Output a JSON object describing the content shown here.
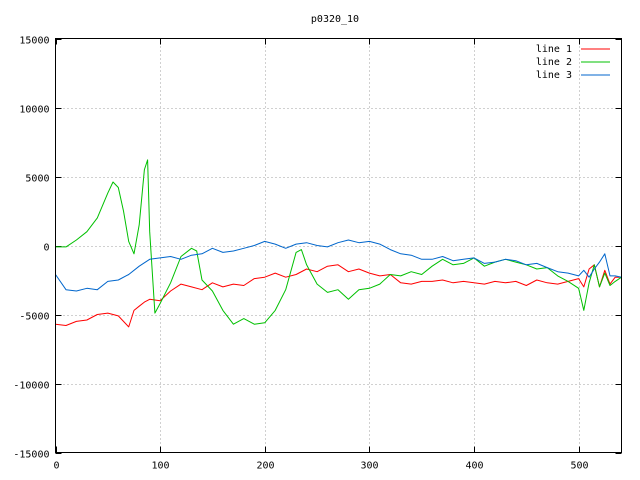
{
  "chart_data": {
    "type": "line",
    "title": "p0320_10",
    "xlabel": "",
    "ylabel": "",
    "xlim": [
      0,
      541
    ],
    "ylim": [
      -15000,
      15000
    ],
    "x_ticks": [
      0,
      100,
      200,
      300,
      400,
      500
    ],
    "y_ticks": [
      -15000,
      -10000,
      -5000,
      0,
      5000,
      10000,
      15000
    ],
    "grid": true,
    "legend_position": "top-right",
    "series": [
      {
        "name": "line 1",
        "color": "#ff0000",
        "x": [
          0,
          10,
          20,
          30,
          40,
          50,
          60,
          70,
          75,
          80,
          85,
          90,
          100,
          110,
          120,
          130,
          140,
          150,
          160,
          170,
          180,
          190,
          200,
          210,
          220,
          230,
          240,
          250,
          260,
          270,
          280,
          290,
          300,
          310,
          320,
          330,
          340,
          350,
          360,
          370,
          380,
          390,
          400,
          410,
          420,
          430,
          440,
          450,
          460,
          470,
          480,
          490,
          500,
          505,
          510,
          515,
          520,
          525,
          530,
          535,
          541
        ],
        "values": [
          -5700,
          -5800,
          -5500,
          -5400,
          -5000,
          -4900,
          -5100,
          -5900,
          -4700,
          -4400,
          -4100,
          -3900,
          -4000,
          -3300,
          -2800,
          -3000,
          -3200,
          -2700,
          -3000,
          -2800,
          -2900,
          -2400,
          -2300,
          -2000,
          -2300,
          -2100,
          -1700,
          -1900,
          -1500,
          -1400,
          -1900,
          -1700,
          -2000,
          -2200,
          -2100,
          -2700,
          -2800,
          -2600,
          -2600,
          -2500,
          -2700,
          -2600,
          -2700,
          -2800,
          -2600,
          -2700,
          -2600,
          -2900,
          -2500,
          -2700,
          -2800,
          -2600,
          -2400,
          -3000,
          -1700,
          -1400,
          -3000,
          -1800,
          -2800,
          -2300,
          -2300
        ]
      },
      {
        "name": "line 2",
        "color": "#00c000",
        "x": [
          0,
          10,
          20,
          30,
          40,
          50,
          55,
          60,
          65,
          70,
          75,
          80,
          85,
          88,
          90,
          95,
          100,
          110,
          120,
          130,
          135,
          140,
          150,
          160,
          170,
          180,
          190,
          200,
          210,
          220,
          230,
          235,
          240,
          250,
          260,
          270,
          280,
          290,
          300,
          310,
          320,
          330,
          340,
          350,
          360,
          370,
          380,
          390,
          400,
          410,
          420,
          430,
          440,
          450,
          460,
          470,
          480,
          490,
          500,
          505,
          510,
          515,
          520,
          525,
          530,
          535,
          541
        ],
        "values": [
          -100,
          -100,
          400,
          1000,
          2000,
          3800,
          4600,
          4200,
          2500,
          300,
          -600,
          1500,
          5500,
          6200,
          1000,
          -4900,
          -4200,
          -2700,
          -800,
          -200,
          -400,
          -2500,
          -3300,
          -4700,
          -5700,
          -5300,
          -5700,
          -5600,
          -4700,
          -3200,
          -500,
          -300,
          -1400,
          -2800,
          -3400,
          -3200,
          -3900,
          -3200,
          -3100,
          -2800,
          -2100,
          -2200,
          -1900,
          -2100,
          -1500,
          -1000,
          -1400,
          -1300,
          -900,
          -1500,
          -1200,
          -1000,
          -1200,
          -1400,
          -1700,
          -1600,
          -2200,
          -2600,
          -3100,
          -4700,
          -2700,
          -1400,
          -3000,
          -2000,
          -2900,
          -2600,
          -2300
        ]
      },
      {
        "name": "line 3",
        "color": "#0066cc",
        "x": [
          0,
          10,
          20,
          30,
          40,
          50,
          60,
          70,
          80,
          90,
          100,
          110,
          120,
          130,
          140,
          150,
          160,
          170,
          180,
          190,
          200,
          210,
          220,
          230,
          240,
          250,
          260,
          270,
          280,
          290,
          300,
          310,
          320,
          330,
          340,
          350,
          360,
          370,
          380,
          390,
          400,
          410,
          420,
          430,
          440,
          450,
          460,
          470,
          480,
          490,
          500,
          505,
          510,
          515,
          520,
          525,
          530,
          535,
          541
        ],
        "values": [
          -2100,
          -3200,
          -3300,
          -3100,
          -3200,
          -2600,
          -2500,
          -2100,
          -1500,
          -1000,
          -900,
          -800,
          -1000,
          -700,
          -600,
          -200,
          -500,
          -400,
          -200,
          0,
          300,
          100,
          -200,
          100,
          200,
          0,
          -100,
          200,
          400,
          200,
          300,
          100,
          -300,
          -600,
          -700,
          -1000,
          -1000,
          -800,
          -1100,
          -1000,
          -900,
          -1300,
          -1200,
          -1000,
          -1100,
          -1400,
          -1300,
          -1600,
          -1900,
          -2000,
          -2200,
          -1800,
          -2300,
          -1700,
          -1200,
          -600,
          -2200,
          -2200,
          -2300
        ]
      }
    ]
  }
}
